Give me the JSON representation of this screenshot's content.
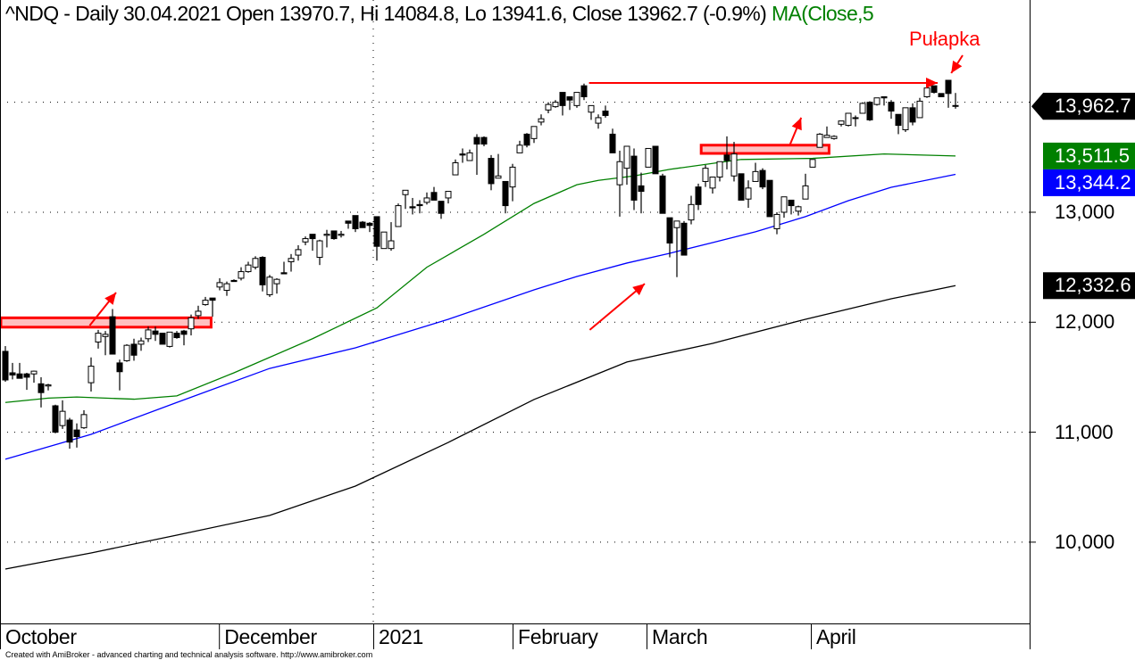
{
  "header": {
    "title": "^NDQ - Daily 30.04.2021 Open 13970.7, Hi 14084.8, Lo 13941.6, Close 13962.7 (-0.9%)",
    "ma_label": "MA(Close,5"
  },
  "annotation_label": "Pułapka",
  "footer": "Created with AmiBroker - advanced charting and technical analysis software. http://www.amibroker.com",
  "colors": {
    "up_fill": "#ffffff",
    "down_fill": "#000000",
    "ma50": "#008000",
    "ma100": "#0000ff",
    "ma200": "#000000",
    "annotation": "#ff0000",
    "zone_fill": "#ffc0c0"
  },
  "chart_data": {
    "type": "candlestick",
    "symbol": "^NDQ",
    "interval": "Daily",
    "ylim": [
      9261,
      14930
    ],
    "yticks": [
      {
        "v": 13000,
        "label": "13,000"
      },
      {
        "v": 12000,
        "label": "12,000"
      },
      {
        "v": 11000,
        "label": "11,000"
      },
      {
        "v": 10000,
        "label": "10,000"
      }
    ],
    "gridlines": [
      14000,
      13000,
      12000,
      11000,
      10000
    ],
    "months": [
      {
        "label": "October",
        "at_bar": -0.75
      },
      {
        "label": "December",
        "at_bar": 29.9
      },
      {
        "label": "2021",
        "at_bar": 51.5
      },
      {
        "label": "February",
        "at_bar": 71
      },
      {
        "label": "March",
        "at_bar": 89.75
      },
      {
        "label": "April",
        "at_bar": 112.75
      }
    ],
    "ohlc": [
      [
        11735,
        11783,
        11459,
        11475
      ],
      [
        11540,
        11630,
        11480,
        11520
      ],
      [
        11530,
        11630,
        11490,
        11490
      ],
      [
        11530,
        11540,
        11385,
        11500
      ],
      [
        11530,
        11560,
        11450,
        11555
      ],
      [
        11440,
        11500,
        11225,
        11360
      ],
      [
        11420,
        11440,
        11380,
        11430
      ],
      [
        11240,
        11250,
        10990,
        11000
      ],
      [
        11060,
        11290,
        11030,
        11190
      ],
      [
        11110,
        11130,
        10850,
        10910
      ],
      [
        11020,
        11080,
        10860,
        10960
      ],
      [
        11040,
        11200,
        11030,
        11160
      ],
      [
        11450,
        11680,
        11370,
        11600
      ],
      [
        11820,
        11930,
        11760,
        11900
      ],
      [
        11870,
        11920,
        11700,
        11890
      ],
      [
        12050,
        12120,
        11710,
        11710
      ],
      [
        11630,
        11660,
        11380,
        11550
      ],
      [
        11650,
        11800,
        11640,
        11790
      ],
      [
        11800,
        11850,
        11650,
        11700
      ],
      [
        11800,
        11860,
        11740,
        11830
      ],
      [
        11850,
        11960,
        11820,
        11930
      ],
      [
        11920,
        11960,
        11830,
        11890
      ],
      [
        11900,
        11900,
        11800,
        11800
      ],
      [
        11780,
        11910,
        11770,
        11910
      ],
      [
        11900,
        11920,
        11850,
        11860
      ],
      [
        11920,
        11930,
        11790,
        11890
      ],
      [
        11940,
        12070,
        11880,
        12040
      ],
      [
        12060,
        12150,
        12030,
        12100
      ],
      [
        12160,
        12230,
        12150,
        12200
      ],
      [
        12220,
        12220,
        12050,
        12200
      ],
      [
        12320,
        12400,
        12290,
        12360
      ],
      [
        12290,
        12370,
        12240,
        12350
      ],
      [
        12380,
        12390,
        12370,
        12370
      ],
      [
        12400,
        12500,
        12380,
        12460
      ],
      [
        12460,
        12550,
        12450,
        12520
      ],
      [
        12500,
        12600,
        12480,
        12580
      ],
      [
        12590,
        12600,
        12280,
        12340
      ],
      [
        12250,
        12430,
        12230,
        12410
      ],
      [
        12350,
        12400,
        12260,
        12390
      ],
      [
        12450,
        12550,
        12440,
        12440
      ],
      [
        12550,
        12620,
        12460,
        12580
      ],
      [
        12610,
        12700,
        12560,
        12660
      ],
      [
        12730,
        12780,
        12700,
        12760
      ],
      [
        12800,
        12800,
        12650,
        12760
      ],
      [
        12590,
        12750,
        12520,
        12740
      ],
      [
        12790,
        12840,
        12680,
        12800
      ],
      [
        12830,
        12830,
        12750,
        12760
      ],
      [
        12790,
        12830,
        12770,
        12800
      ],
      [
        12920,
        12920,
        12850,
        12900
      ],
      [
        12970,
        12970,
        12820,
        12850
      ],
      [
        12910,
        12920,
        12860,
        12860
      ],
      [
        12900,
        12910,
        12820,
        12880
      ],
      [
        12960,
        12960,
        12560,
        12690
      ],
      [
        12670,
        12820,
        12670,
        12820
      ],
      [
        12670,
        12910,
        12650,
        12740
      ],
      [
        12870,
        13080,
        12870,
        13060
      ],
      [
        13160,
        13200,
        13030,
        13200
      ],
      [
        13050,
        13130,
        12980,
        13040
      ],
      [
        13070,
        13110,
        12990,
        13060
      ],
      [
        13090,
        13180,
        13070,
        13130
      ],
      [
        13180,
        13230,
        13110,
        13110
      ],
      [
        13100,
        13100,
        12940,
        12990
      ],
      [
        13130,
        13190,
        13080,
        13190
      ],
      [
        13340,
        13480,
        13340,
        13450
      ],
      [
        13530,
        13580,
        13450,
        13520
      ],
      [
        13470,
        13570,
        13470,
        13540
      ],
      [
        13680,
        13710,
        13340,
        13620
      ],
      [
        13680,
        13690,
        13600,
        13620
      ],
      [
        13490,
        13520,
        13200,
        13260
      ],
      [
        13310,
        13530,
        13310,
        13330
      ],
      [
        13280,
        13280,
        12990,
        13060
      ],
      [
        13230,
        13440,
        13100,
        13410
      ],
      [
        13540,
        13650,
        13540,
        13610
      ],
      [
        13710,
        13720,
        13590,
        13610
      ],
      [
        13670,
        13780,
        13630,
        13780
      ],
      [
        13820,
        13890,
        13790,
        13850
      ],
      [
        13930,
        14000,
        13900,
        13980
      ],
      [
        13960,
        14020,
        13950,
        14000
      ],
      [
        14090,
        14090,
        13880,
        13970
      ],
      [
        14050,
        14050,
        13930,
        14020
      ],
      [
        13970,
        14090,
        13950,
        14090
      ],
      [
        14150,
        14170,
        14020,
        14050
      ],
      [
        13910,
        13970,
        13840,
        13970
      ],
      [
        13810,
        13890,
        13760,
        13860
      ],
      [
        13920,
        13970,
        13860,
        13880
      ],
      [
        13710,
        13760,
        13540,
        13540
      ],
      [
        13250,
        13560,
        12960,
        13460
      ],
      [
        13400,
        13600,
        13250,
        13600
      ],
      [
        13510,
        13580,
        13020,
        13110
      ],
      [
        13240,
        13360,
        12990,
        13190
      ],
      [
        13410,
        13580,
        13410,
        13580
      ],
      [
        13600,
        13600,
        13350,
        13350
      ],
      [
        13330,
        13350,
        12990,
        12990
      ],
      [
        12950,
        12950,
        12590,
        12720
      ],
      [
        12860,
        12920,
        12410,
        12920
      ],
      [
        12900,
        12920,
        12610,
        12610
      ],
      [
        12930,
        13150,
        12890,
        13070
      ],
      [
        13230,
        13260,
        13020,
        13070
      ],
      [
        13280,
        13430,
        13230,
        13400
      ],
      [
        13220,
        13320,
        13170,
        13320
      ],
      [
        13320,
        13460,
        13280,
        13460
      ],
      [
        13520,
        13690,
        13390,
        13470
      ],
      [
        13330,
        13640,
        13280,
        13530
      ],
      [
        13350,
        13350,
        13110,
        13110
      ],
      [
        13120,
        13290,
        13040,
        13220
      ],
      [
        13280,
        13450,
        13280,
        13370
      ],
      [
        13380,
        13400,
        13210,
        13230
      ],
      [
        13290,
        13290,
        12960,
        12960
      ],
      [
        12850,
        13000,
        12800,
        12980
      ],
      [
        13000,
        13140,
        12950,
        13140
      ],
      [
        13110,
        13110,
        12980,
        13060
      ],
      [
        13010,
        13060,
        12970,
        13050
      ],
      [
        13120,
        13350,
        13120,
        13240
      ],
      [
        13410,
        13480,
        13410,
        13480
      ],
      [
        13590,
        13720,
        13590,
        13710
      ],
      [
        13680,
        13780,
        13680,
        13700
      ],
      [
        13670,
        13700,
        13660,
        13690
      ],
      [
        13800,
        13830,
        13780,
        13830
      ],
      [
        13790,
        13900,
        13780,
        13900
      ],
      [
        13860,
        13880,
        13780,
        13860
      ],
      [
        13900,
        14000,
        13900,
        13990
      ],
      [
        14000,
        14010,
        13830,
        13840
      ],
      [
        13980,
        14040,
        13970,
        14040
      ],
      [
        14050,
        14050,
        13970,
        14040
      ],
      [
        14000,
        14020,
        13850,
        13920
      ],
      [
        13890,
        13890,
        13710,
        13790
      ],
      [
        13750,
        13950,
        13730,
        13950
      ],
      [
        13950,
        13990,
        13790,
        13820
      ],
      [
        13860,
        14040,
        13860,
        14010
      ],
      [
        14050,
        14150,
        14040,
        14130
      ],
      [
        14150,
        14150,
        14080,
        14090
      ],
      [
        14080,
        14080,
        14050,
        14050
      ],
      [
        14200,
        14200,
        13950,
        14080
      ],
      [
        13970.7,
        14084.8,
        13941.6,
        13962.7
      ]
    ],
    "series": [
      {
        "name": "MA50",
        "color": "#008000",
        "last": "13,511.5",
        "points": [
          [
            0,
            11270
          ],
          [
            6,
            11310
          ],
          [
            10,
            11320
          ],
          [
            18,
            11300
          ],
          [
            24,
            11330
          ],
          [
            32,
            11540
          ],
          [
            43,
            11850
          ],
          [
            52,
            12130
          ],
          [
            59,
            12500
          ],
          [
            67,
            12800
          ],
          [
            74,
            13080
          ],
          [
            80,
            13250
          ],
          [
            83,
            13290
          ],
          [
            88,
            13330
          ],
          [
            93,
            13390
          ],
          [
            103,
            13480
          ],
          [
            113,
            13490
          ],
          [
            123,
            13530
          ],
          [
            133,
            13511.5
          ]
        ]
      },
      {
        "name": "MA100",
        "color": "#0000ff",
        "last": "13,344.2",
        "points": [
          [
            0,
            10754
          ],
          [
            12,
            10980
          ],
          [
            24,
            11270
          ],
          [
            37,
            11580
          ],
          [
            49,
            11767
          ],
          [
            62,
            12027
          ],
          [
            74,
            12294
          ],
          [
            80,
            12416
          ],
          [
            87,
            12538
          ],
          [
            93,
            12627
          ],
          [
            99,
            12724
          ],
          [
            105,
            12822
          ],
          [
            112,
            12960
          ],
          [
            118,
            13105
          ],
          [
            124,
            13227
          ],
          [
            133,
            13344.2
          ]
        ]
      },
      {
        "name": "MA200",
        "color": "#000000",
        "last": "12,332.6",
        "points": [
          [
            0,
            9756
          ],
          [
            12,
            9902
          ],
          [
            24,
            10064
          ],
          [
            37,
            10243
          ],
          [
            49,
            10510
          ],
          [
            62,
            10907
          ],
          [
            74,
            11297
          ],
          [
            87,
            11638
          ],
          [
            99,
            11808
          ],
          [
            112,
            12027
          ],
          [
            124,
            12213
          ],
          [
            133,
            12332.6
          ]
        ]
      }
    ],
    "last_close_label": "13,962.7",
    "last_close": 13962.7,
    "annotations": {
      "zones": [
        {
          "from_bar": -0.8,
          "to_bar": 28.8,
          "low": 11955,
          "high": 12040
        },
        {
          "from_bar": 97.4,
          "to_bar": 115.3,
          "low": 13535,
          "high": 13610
        }
      ],
      "hline": {
        "from_bar": 81.7,
        "to_bar": 130.5,
        "price": 14176
      },
      "arrows": [
        [
          11.8,
          11970,
          15.5,
          12270
        ],
        [
          81.8,
          11930,
          89.5,
          12350
        ],
        [
          109.8,
          13610,
          111.4,
          13860
        ],
        [
          134.0,
          14427,
          132.4,
          14265
        ]
      ]
    }
  }
}
